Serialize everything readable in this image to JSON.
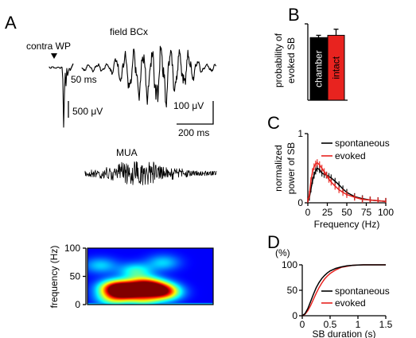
{
  "panels": {
    "A": {
      "letter": "A",
      "stim_label": "contra WP",
      "field_label": "field BCx",
      "mua_label": "MUA",
      "inset_time_scale": "50 ms",
      "inset_voltage_scale": "500 μV",
      "voltage_scale": "100 μV",
      "time_scale": "200 ms"
    },
    "B": {
      "letter": "B"
    },
    "C": {
      "letter": "C"
    },
    "D": {
      "letter": "D"
    }
  },
  "colors": {
    "evoked": "#e8231f",
    "spontaneous": "#000000",
    "chamber": "#000000",
    "intact": "#e8231f"
  },
  "chart_data": [
    {
      "id": "A-spectrogram",
      "type": "heatmap",
      "ylabel": "frequency (Hz)",
      "yticks": [
        0,
        50,
        100
      ],
      "ylim": [
        0,
        100
      ],
      "colormap": "jet",
      "blobs": [
        {
          "t": 0.32,
          "f": 25,
          "intensity": 1.0
        },
        {
          "t": 0.22,
          "f": 30,
          "intensity": 0.85
        },
        {
          "t": 0.45,
          "f": 35,
          "intensity": 0.8
        },
        {
          "t": 0.55,
          "f": 28,
          "intensity": 0.7
        },
        {
          "t": 0.62,
          "f": 22,
          "intensity": 0.55
        },
        {
          "t": 0.2,
          "f": 12,
          "intensity": 0.45
        },
        {
          "t": 0.45,
          "f": 12,
          "intensity": 0.45
        },
        {
          "t": 0.38,
          "f": 60,
          "intensity": 0.35
        },
        {
          "t": 0.1,
          "f": 70,
          "intensity": 0.25
        },
        {
          "t": 0.6,
          "f": 75,
          "intensity": 0.25
        }
      ]
    },
    {
      "id": "B-bars",
      "type": "bar",
      "ylabel": "probability of evoked SB",
      "ylim": [
        0,
        1
      ],
      "categories": [
        "chamber",
        "intact"
      ],
      "values": [
        0.82,
        0.85
      ],
      "errors": [
        0.03,
        0.08
      ]
    },
    {
      "id": "C-spectra",
      "type": "line",
      "xlabel": "Frequency (Hz)",
      "ylabel": "normalized power of SB",
      "xlim": [
        0,
        100
      ],
      "ylim": [
        0,
        1
      ],
      "xticks": [
        0,
        25,
        50,
        75,
        100
      ],
      "yticks": [
        0,
        1
      ],
      "legend": "top-right",
      "x": [
        0,
        2,
        4,
        6,
        8,
        10,
        12,
        15,
        18,
        21,
        24,
        27,
        30,
        35,
        40,
        45,
        50,
        60,
        70,
        80,
        90,
        100
      ],
      "series": [
        {
          "name": "spontaneous",
          "values": [
            0.02,
            0.08,
            0.2,
            0.32,
            0.4,
            0.46,
            0.5,
            0.48,
            0.43,
            0.41,
            0.4,
            0.38,
            0.36,
            0.31,
            0.26,
            0.2,
            0.15,
            0.09,
            0.06,
            0.04,
            0.03,
            0.02
          ],
          "error": 0.05
        },
        {
          "name": "evoked",
          "values": [
            0.02,
            0.12,
            0.32,
            0.45,
            0.52,
            0.56,
            0.58,
            0.55,
            0.5,
            0.45,
            0.4,
            0.34,
            0.3,
            0.24,
            0.19,
            0.15,
            0.12,
            0.08,
            0.05,
            0.04,
            0.03,
            0.02
          ],
          "error": 0.05
        }
      ]
    },
    {
      "id": "D-cumulative",
      "type": "line",
      "unit_label": "(%)",
      "xlabel": "SB duration (s)",
      "xlim": [
        0,
        1.5
      ],
      "ylim": [
        0,
        100
      ],
      "xticks": [
        "0",
        "0.5",
        "1",
        "1.5"
      ],
      "xtick_values": [
        0,
        0.5,
        1,
        1.5
      ],
      "yticks": [
        0,
        50,
        100
      ],
      "legend": "bottom-right",
      "x": [
        0,
        0.05,
        0.1,
        0.15,
        0.2,
        0.25,
        0.3,
        0.35,
        0.4,
        0.45,
        0.5,
        0.6,
        0.7,
        0.8,
        0.9,
        1.0,
        1.1,
        1.2,
        1.3,
        1.4,
        1.5
      ],
      "series": [
        {
          "name": "spontaneous",
          "values": [
            0,
            4,
            14,
            28,
            42,
            55,
            65,
            73,
            79,
            84,
            88,
            93,
            96,
            98,
            99,
            99.5,
            100,
            100,
            100,
            100,
            100
          ]
        },
        {
          "name": "evoked",
          "values": [
            0,
            3,
            10,
            20,
            32,
            44,
            55,
            64,
            72,
            78,
            83,
            90,
            95,
            97,
            99,
            99.5,
            100,
            100,
            100,
            100,
            100
          ]
        }
      ]
    }
  ]
}
